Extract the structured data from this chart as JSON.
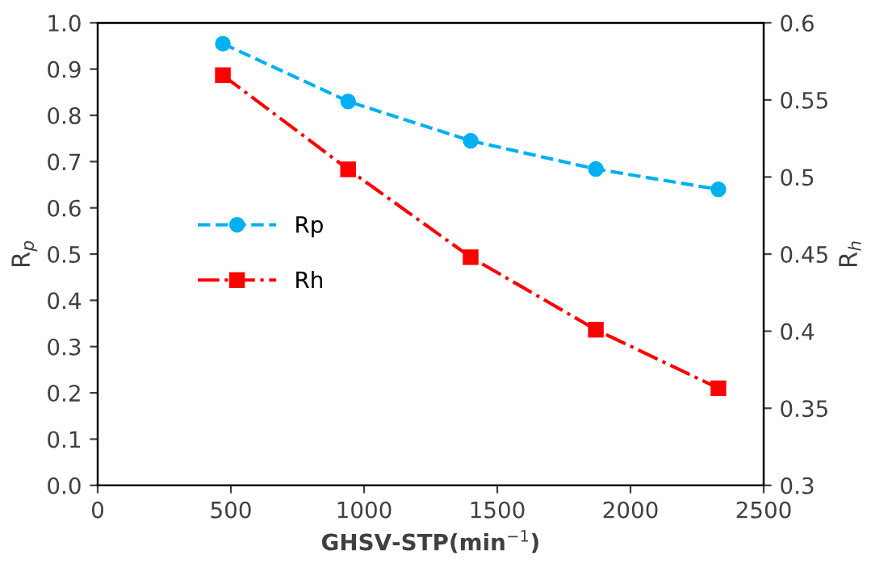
{
  "chart_data": {
    "type": "line",
    "xlabel": "GHSV-STP(min$^{−1}$)",
    "ylabel": "R$_{p}$",
    "y2label": "R$_{h}$",
    "x": [
      470,
      940,
      1400,
      1870,
      2330
    ],
    "series": [
      {
        "name": "Rp",
        "color": "#00b0f0",
        "values": [
          0.955,
          0.83,
          0.745,
          0.684,
          0.64
        ],
        "marker": "circle",
        "line_style": "dashed"
      },
      {
        "name": "Rh",
        "color": "#ff0000",
        "values": [
          0.566,
          0.505,
          0.448,
          0.401,
          0.363
        ],
        "marker": "square",
        "line_style": "dashdot",
        "axis": "y2"
      }
    ],
    "xlim": [
      0,
      2500
    ],
    "xticks": [
      0,
      500,
      1000,
      1500,
      2000,
      2500
    ],
    "ylim": [
      0,
      1.0
    ],
    "yticks": [
      {
        "value": 0,
        "label": "0.0"
      },
      0.1,
      0.2,
      0.3,
      0.4,
      0.5,
      0.6,
      0.7,
      0.8,
      0.9,
      {
        "value": 1.0,
        "label": "1.0"
      }
    ],
    "y2lim": [
      0.3,
      0.6
    ],
    "y2ticks": [
      0.3,
      0.35,
      0.4,
      0.45,
      0.5,
      0.55,
      0.6
    ],
    "grid": false,
    "legend": "center left"
  }
}
